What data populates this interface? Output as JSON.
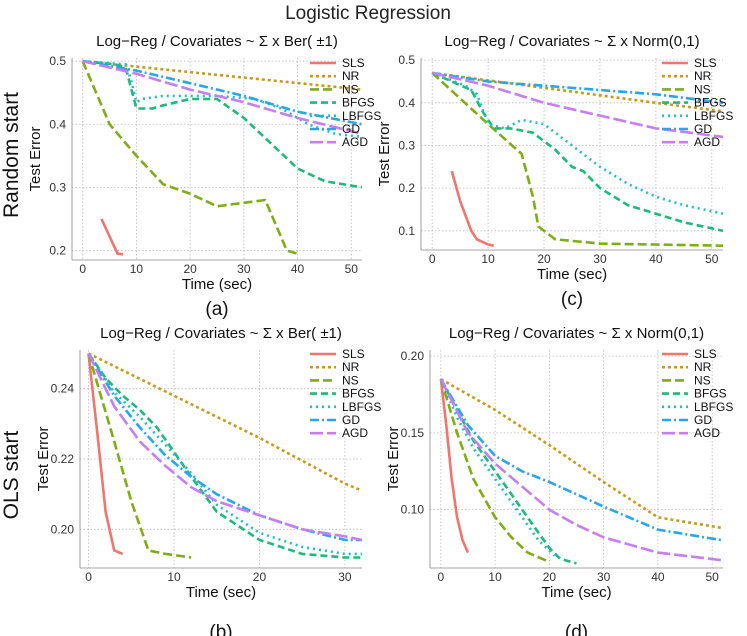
{
  "figure_title": "Logistic Regression",
  "row_labels": [
    "Random start",
    "OLS start"
  ],
  "series_styles": [
    {
      "name": "SLS",
      "color": "#F0766C",
      "dash": "none"
    },
    {
      "name": "NR",
      "color": "#C99A18",
      "dash": "3 3"
    },
    {
      "name": "NS",
      "color": "#7FAD14",
      "dash": "9 4"
    },
    {
      "name": "BFGS",
      "color": "#1DBA7A",
      "dash": "7 4"
    },
    {
      "name": "LBFGS",
      "color": "#1EBFC8",
      "dash": "2 4"
    },
    {
      "name": "GD",
      "color": "#27A7EA",
      "dash": "9 3 2 3"
    },
    {
      "name": "AGD",
      "color": "#C77EF0",
      "dash": "13 4"
    }
  ],
  "chart_data": [
    {
      "type": "line",
      "label": "(a)",
      "title": "Log−Reg / Covariates ~ Σ x Ber( ±1)",
      "xlabel": "Time (sec)",
      "ylabel": "Test Error",
      "xlim": [
        -2,
        52
      ],
      "ylim": [
        0.185,
        0.505
      ],
      "xticks": [
        0,
        10,
        20,
        30,
        40,
        50
      ],
      "yticks": [
        0.2,
        0.3,
        0.4,
        0.5
      ],
      "ytick_labels": [
        "0.2",
        "0.3",
        "0.4",
        "0.5"
      ],
      "series": [
        {
          "name": "SLS",
          "x": [
            3.5,
            6.5,
            7.5
          ],
          "y": [
            0.25,
            0.195,
            0.194
          ]
        },
        {
          "name": "NR",
          "x": [
            0,
            52
          ],
          "y": [
            0.5,
            0.455
          ]
        },
        {
          "name": "NS",
          "x": [
            0,
            5,
            10,
            15,
            20,
            25,
            34,
            38,
            40
          ],
          "y": [
            0.5,
            0.4,
            0.35,
            0.305,
            0.29,
            0.27,
            0.28,
            0.2,
            0.195
          ]
        },
        {
          "name": "BFGS",
          "x": [
            0,
            6,
            8,
            10,
            13,
            15,
            20,
            25,
            30,
            35,
            40,
            45,
            52
          ],
          "y": [
            0.5,
            0.495,
            0.49,
            0.425,
            0.425,
            0.43,
            0.44,
            0.44,
            0.41,
            0.37,
            0.33,
            0.31,
            0.3
          ]
        },
        {
          "name": "LBFGS",
          "x": [
            0,
            8,
            9,
            10,
            11,
            15,
            25,
            32,
            37,
            42,
            47,
            52
          ],
          "y": [
            0.5,
            0.495,
            0.47,
            0.435,
            0.44,
            0.445,
            0.445,
            0.44,
            0.425,
            0.4,
            0.385,
            0.38
          ]
        },
        {
          "name": "GD",
          "x": [
            0,
            10,
            20,
            30,
            40,
            52
          ],
          "y": [
            0.5,
            0.485,
            0.465,
            0.445,
            0.42,
            0.4
          ]
        },
        {
          "name": "AGD",
          "x": [
            0,
            10,
            20,
            30,
            40,
            52
          ],
          "y": [
            0.5,
            0.48,
            0.455,
            0.435,
            0.41,
            0.385
          ]
        }
      ]
    },
    {
      "type": "line",
      "label": "(c)",
      "title": "Log−Reg / Covariates ~ Σ x Norm(0,1)",
      "xlabel": "Time (sec)",
      "ylabel": "Test Error",
      "xlim": [
        -2,
        52
      ],
      "ylim": [
        0.055,
        0.505
      ],
      "xticks": [
        0,
        10,
        20,
        30,
        40,
        50
      ],
      "yticks": [
        0.1,
        0.2,
        0.3,
        0.4,
        0.5
      ],
      "ytick_labels": [
        "0.1",
        "0.2",
        "0.3",
        "0.4",
        "0.5"
      ],
      "series": [
        {
          "name": "SLS",
          "x": [
            3.5,
            5,
            7,
            8,
            10,
            11
          ],
          "y": [
            0.24,
            0.17,
            0.1,
            0.08,
            0.068,
            0.065
          ]
        },
        {
          "name": "NR",
          "x": [
            0,
            40,
            52
          ],
          "y": [
            0.47,
            0.4,
            0.38
          ]
        },
        {
          "name": "NS",
          "x": [
            0,
            10,
            16,
            18,
            19,
            22,
            30,
            52
          ],
          "y": [
            0.47,
            0.35,
            0.28,
            0.18,
            0.11,
            0.08,
            0.07,
            0.065
          ]
        },
        {
          "name": "BFGS",
          "x": [
            0,
            7,
            9,
            11,
            14,
            18,
            22,
            25,
            27,
            30,
            35,
            40,
            45,
            52
          ],
          "y": [
            0.47,
            0.43,
            0.38,
            0.34,
            0.34,
            0.33,
            0.29,
            0.25,
            0.24,
            0.2,
            0.16,
            0.14,
            0.12,
            0.1
          ]
        },
        {
          "name": "LBFGS",
          "x": [
            0,
            6,
            8,
            10,
            13,
            16,
            20,
            25,
            30,
            35,
            40,
            45,
            52
          ],
          "y": [
            0.47,
            0.44,
            0.42,
            0.35,
            0.34,
            0.36,
            0.35,
            0.3,
            0.25,
            0.21,
            0.18,
            0.16,
            0.14
          ]
        },
        {
          "name": "GD",
          "x": [
            0,
            10,
            20,
            30,
            40,
            52
          ],
          "y": [
            0.47,
            0.45,
            0.44,
            0.43,
            0.42,
            0.4
          ]
        },
        {
          "name": "AGD",
          "x": [
            0,
            10,
            20,
            30,
            40,
            52
          ],
          "y": [
            0.47,
            0.44,
            0.4,
            0.37,
            0.34,
            0.32
          ]
        }
      ]
    },
    {
      "type": "line",
      "label": "(b)",
      "title": "Log−Reg / Covariates ~ Σ x Ber( ±1)",
      "xlabel": "Time (sec)",
      "ylabel": "Test Error",
      "xlim": [
        -1,
        32
      ],
      "ylim": [
        0.189,
        0.251
      ],
      "xticks": [
        0,
        10,
        20,
        30
      ],
      "yticks": [
        0.2,
        0.22,
        0.24
      ],
      "ytick_labels": [
        "0.20",
        "0.22",
        "0.24"
      ],
      "series": [
        {
          "name": "SLS",
          "x": [
            0,
            1,
            2,
            3,
            4
          ],
          "y": [
            0.25,
            0.228,
            0.205,
            0.194,
            0.193
          ]
        },
        {
          "name": "NR",
          "x": [
            0,
            10,
            20,
            30,
            32
          ],
          "y": [
            0.25,
            0.238,
            0.226,
            0.213,
            0.211
          ]
        },
        {
          "name": "NS",
          "x": [
            0,
            3,
            5,
            7,
            9,
            12
          ],
          "y": [
            0.25,
            0.225,
            0.208,
            0.194,
            0.193,
            0.192
          ]
        },
        {
          "name": "BFGS",
          "x": [
            0,
            2,
            4,
            6,
            8,
            10,
            12,
            15,
            20,
            25,
            30,
            32
          ],
          "y": [
            0.25,
            0.243,
            0.238,
            0.234,
            0.229,
            0.222,
            0.215,
            0.205,
            0.197,
            0.193,
            0.192,
            0.192
          ]
        },
        {
          "name": "LBFGS",
          "x": [
            0,
            3,
            6,
            9,
            12,
            15,
            20,
            25,
            30,
            32
          ],
          "y": [
            0.25,
            0.239,
            0.232,
            0.224,
            0.216,
            0.207,
            0.199,
            0.195,
            0.193,
            0.193
          ]
        },
        {
          "name": "GD",
          "x": [
            0,
            3,
            6,
            9,
            12,
            15,
            20,
            25,
            30,
            32
          ],
          "y": [
            0.25,
            0.238,
            0.229,
            0.221,
            0.215,
            0.21,
            0.204,
            0.2,
            0.197,
            0.197
          ]
        },
        {
          "name": "AGD",
          "x": [
            0,
            3,
            6,
            9,
            12,
            15,
            20,
            25,
            30,
            32
          ],
          "y": [
            0.25,
            0.235,
            0.225,
            0.218,
            0.212,
            0.208,
            0.204,
            0.2,
            0.198,
            0.197
          ]
        }
      ]
    },
    {
      "type": "line",
      "label": "(d)",
      "title": "Log−Reg / Covariates ~ Σ x Norm(0,1)",
      "xlabel": "Time (sec)",
      "ylabel": "Test Error",
      "xlim": [
        -2,
        52
      ],
      "ylim": [
        0.062,
        0.204
      ],
      "xticks": [
        0,
        10,
        20,
        30,
        40,
        50
      ],
      "yticks": [
        0.1,
        0.15,
        0.2
      ],
      "ytick_labels": [
        "0.10",
        "0.15",
        "0.20"
      ],
      "series": [
        {
          "name": "SLS",
          "x": [
            0,
            1,
            2,
            3,
            4,
            5
          ],
          "y": [
            0.185,
            0.155,
            0.12,
            0.095,
            0.08,
            0.072
          ]
        },
        {
          "name": "NR",
          "x": [
            0,
            10,
            20,
            30,
            40,
            52
          ],
          "y": [
            0.185,
            0.165,
            0.142,
            0.118,
            0.095,
            0.088
          ]
        },
        {
          "name": "NS",
          "x": [
            0,
            3,
            6,
            10,
            13,
            16,
            20
          ],
          "y": [
            0.185,
            0.15,
            0.12,
            0.095,
            0.082,
            0.072,
            0.066
          ]
        },
        {
          "name": "BFGS",
          "x": [
            0,
            3,
            6,
            9,
            12,
            15,
            18,
            20,
            22,
            25
          ],
          "y": [
            0.185,
            0.165,
            0.145,
            0.13,
            0.115,
            0.1,
            0.085,
            0.075,
            0.068,
            0.065
          ]
        },
        {
          "name": "LBFGS",
          "x": [
            0,
            3,
            6,
            9,
            12,
            15,
            18,
            21
          ],
          "y": [
            0.185,
            0.16,
            0.14,
            0.125,
            0.11,
            0.095,
            0.08,
            0.07
          ]
        },
        {
          "name": "GD",
          "x": [
            0,
            5,
            10,
            15,
            20,
            25,
            30,
            40,
            52
          ],
          "y": [
            0.185,
            0.155,
            0.135,
            0.125,
            0.118,
            0.11,
            0.102,
            0.087,
            0.08
          ]
        },
        {
          "name": "AGD",
          "x": [
            0,
            5,
            10,
            15,
            20,
            25,
            30,
            40,
            52
          ],
          "y": [
            0.185,
            0.15,
            0.13,
            0.115,
            0.1,
            0.09,
            0.082,
            0.072,
            0.067
          ]
        }
      ]
    }
  ]
}
